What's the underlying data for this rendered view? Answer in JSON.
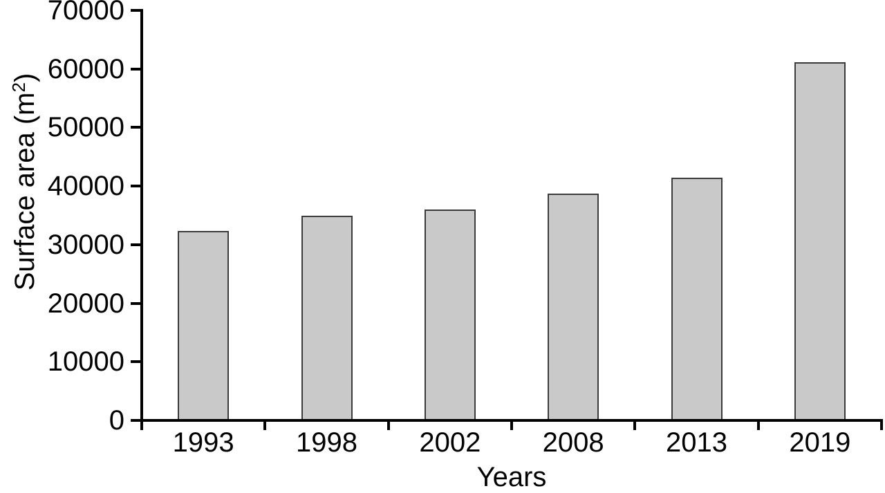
{
  "chart_data": {
    "type": "bar",
    "title": "",
    "categories": [
      "1993",
      "1998",
      "2002",
      "2008",
      "2013",
      "2019"
    ],
    "values": [
      32300,
      35000,
      36000,
      38700,
      41400,
      61200
    ],
    "xlabel": "Years",
    "ylabel": "Surface area (m²)",
    "ylabel_parts": {
      "prefix": "Surface area (m",
      "superscript": "2",
      "suffix": ")"
    },
    "ylim": [
      0,
      70000
    ],
    "yticks": [
      0,
      10000,
      20000,
      30000,
      40000,
      50000,
      60000,
      70000
    ],
    "grid": "off",
    "legend": "none",
    "bar_fill": "#c9c9c9",
    "bar_border": "#3a3a3a",
    "axis_color": "#000000",
    "text_color": "#000000",
    "background": "#ffffff"
  }
}
